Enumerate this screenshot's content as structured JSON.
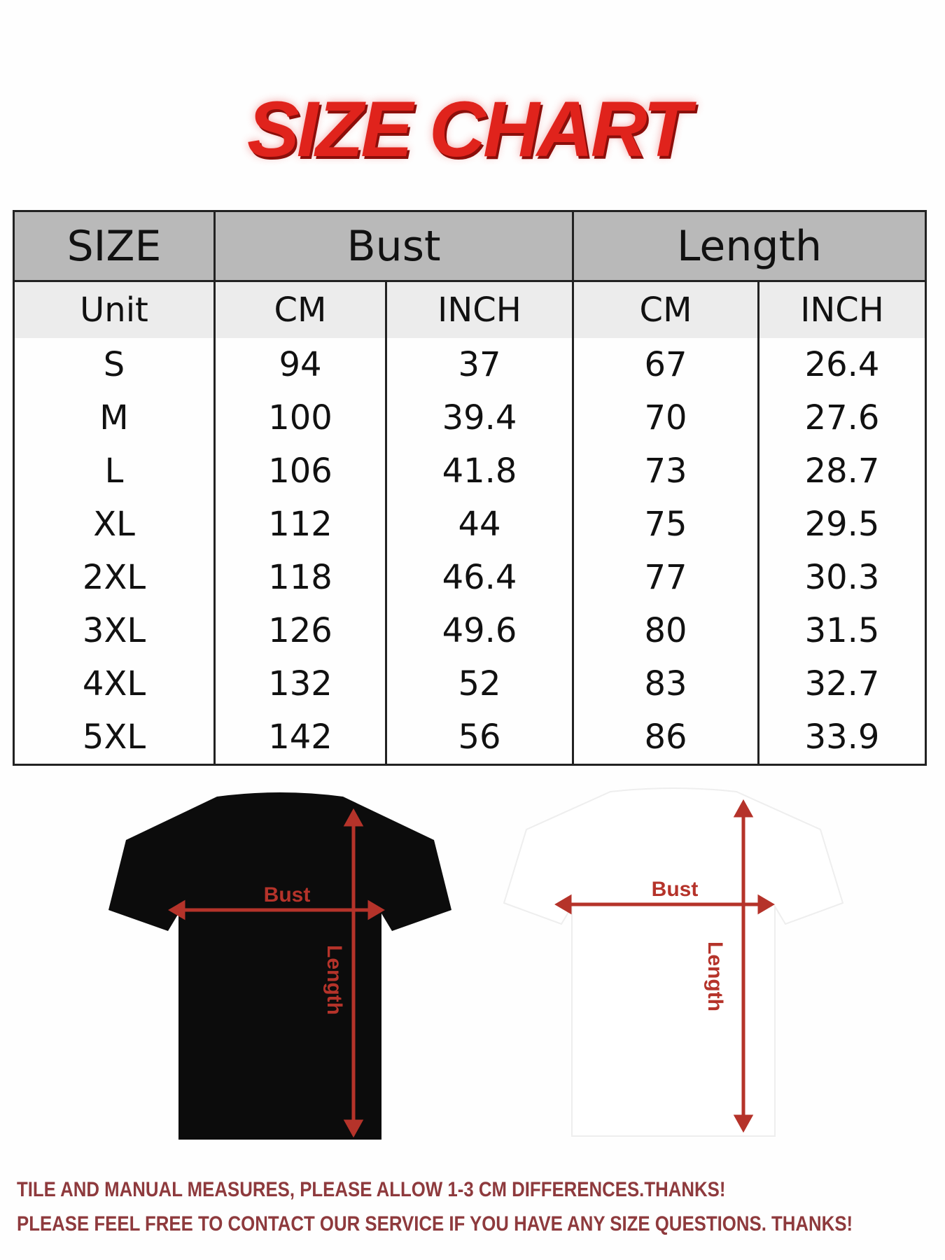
{
  "title": "SIZE CHART",
  "table": {
    "header": {
      "size": "SIZE",
      "bust": "Bust",
      "length": "Length"
    },
    "units": [
      "Unit",
      "CM",
      "INCH",
      "CM",
      "INCH"
    ],
    "rows": [
      [
        "S",
        "94",
        "37",
        "67",
        "26.4"
      ],
      [
        "M",
        "100",
        "39.4",
        "70",
        "27.6"
      ],
      [
        "L",
        "106",
        "41.8",
        "73",
        "28.7"
      ],
      [
        "XL",
        "112",
        "44",
        "75",
        "29.5"
      ],
      [
        "2XL",
        "118",
        "46.4",
        "77",
        "30.3"
      ],
      [
        "3XL",
        "126",
        "49.6",
        "80",
        "31.5"
      ],
      [
        "4XL",
        "132",
        "52",
        "83",
        "32.7"
      ],
      [
        "5XL",
        "142",
        "56",
        "86",
        "33.9"
      ]
    ]
  },
  "diagrams": {
    "bust_label": "Bust",
    "length_label": "Length",
    "shirt_colors": [
      "#0c0c0c",
      "#ffffff"
    ],
    "arrow_color": "#b5332a"
  },
  "notes": [
    "TILE AND MANUAL MEASURES, PLEASE ALLOW 1-3 CM DIFFERENCES.THANKS!",
    "PLEASE FEEL FREE TO CONTACT OUR SERVICE IF YOU HAVE ANY SIZE QUESTIONS. THANKS!"
  ]
}
